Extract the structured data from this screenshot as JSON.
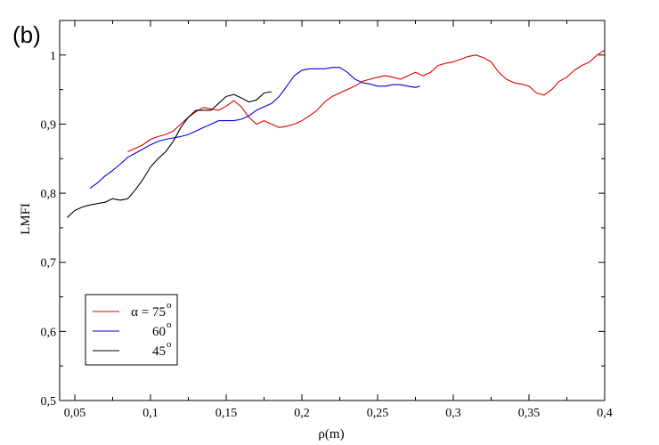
{
  "chart_data": {
    "type": "line",
    "panel_label": "(b)",
    "xlabel": "ρ(m)",
    "ylabel": "LMFI",
    "xlim": [
      0.04,
      0.4
    ],
    "ylim": [
      0.5,
      1.05
    ],
    "x_ticks": [
      {
        "value": 0.05,
        "label": "0,05"
      },
      {
        "value": 0.1,
        "label": "0,1"
      },
      {
        "value": 0.15,
        "label": "0,15"
      },
      {
        "value": 0.2,
        "label": "0,2"
      },
      {
        "value": 0.25,
        "label": "0,25"
      },
      {
        "value": 0.3,
        "label": "0,3"
      },
      {
        "value": 0.35,
        "label": "0,35"
      },
      {
        "value": 0.4,
        "label": "0,4"
      }
    ],
    "y_ticks": [
      {
        "value": 0.5,
        "label": "0,5"
      },
      {
        "value": 0.6,
        "label": "0,6"
      },
      {
        "value": 0.7,
        "label": "0,7"
      },
      {
        "value": 0.8,
        "label": "0,8"
      },
      {
        "value": 0.9,
        "label": "0,9"
      },
      {
        "value": 1.0,
        "label": "1"
      }
    ],
    "grid": false,
    "legend": {
      "placement": "bottom-left"
    },
    "series": [
      {
        "name": "α = 75°",
        "legend_main": "α = 75",
        "legend_sup": "o",
        "color": "#e00000",
        "x": [
          0.085,
          0.09,
          0.095,
          0.1,
          0.105,
          0.11,
          0.115,
          0.12,
          0.125,
          0.13,
          0.135,
          0.14,
          0.145,
          0.15,
          0.155,
          0.16,
          0.165,
          0.17,
          0.175,
          0.18,
          0.185,
          0.19,
          0.195,
          0.2,
          0.205,
          0.21,
          0.215,
          0.22,
          0.225,
          0.23,
          0.235,
          0.24,
          0.245,
          0.25,
          0.255,
          0.26,
          0.265,
          0.27,
          0.275,
          0.28,
          0.285,
          0.29,
          0.295,
          0.3,
          0.305,
          0.31,
          0.315,
          0.32,
          0.325,
          0.33,
          0.335,
          0.34,
          0.345,
          0.35,
          0.355,
          0.36,
          0.365,
          0.37,
          0.375,
          0.38,
          0.385,
          0.39,
          0.395,
          0.4
        ],
        "y": [
          0.86,
          0.865,
          0.87,
          0.878,
          0.882,
          0.885,
          0.89,
          0.9,
          0.91,
          0.918,
          0.924,
          0.922,
          0.92,
          0.926,
          0.934,
          0.925,
          0.91,
          0.9,
          0.905,
          0.9,
          0.895,
          0.897,
          0.9,
          0.905,
          0.912,
          0.92,
          0.932,
          0.94,
          0.945,
          0.95,
          0.955,
          0.962,
          0.965,
          0.968,
          0.97,
          0.968,
          0.965,
          0.97,
          0.975,
          0.97,
          0.975,
          0.985,
          0.988,
          0.99,
          0.994,
          0.998,
          1.0,
          0.996,
          0.99,
          0.975,
          0.965,
          0.96,
          0.958,
          0.955,
          0.945,
          0.942,
          0.95,
          0.962,
          0.968,
          0.978,
          0.985,
          0.99,
          1.0,
          1.007
        ]
      },
      {
        "name": "60°",
        "legend_main": "60",
        "legend_sup": "o",
        "color": "#0000e0",
        "x": [
          0.06,
          0.065,
          0.07,
          0.075,
          0.08,
          0.085,
          0.09,
          0.095,
          0.1,
          0.105,
          0.11,
          0.115,
          0.12,
          0.125,
          0.13,
          0.135,
          0.14,
          0.145,
          0.15,
          0.155,
          0.16,
          0.165,
          0.17,
          0.175,
          0.18,
          0.185,
          0.19,
          0.195,
          0.2,
          0.205,
          0.21,
          0.215,
          0.22,
          0.225,
          0.23,
          0.235,
          0.24,
          0.245,
          0.25,
          0.255,
          0.26,
          0.265,
          0.27,
          0.275,
          0.278
        ],
        "y": [
          0.807,
          0.815,
          0.825,
          0.833,
          0.842,
          0.852,
          0.858,
          0.864,
          0.87,
          0.875,
          0.878,
          0.88,
          0.882,
          0.885,
          0.89,
          0.895,
          0.9,
          0.905,
          0.905,
          0.905,
          0.907,
          0.912,
          0.92,
          0.925,
          0.93,
          0.94,
          0.955,
          0.97,
          0.978,
          0.98,
          0.98,
          0.98,
          0.982,
          0.982,
          0.975,
          0.965,
          0.96,
          0.958,
          0.955,
          0.955,
          0.957,
          0.957,
          0.955,
          0.953,
          0.955
        ]
      },
      {
        "name": "45°",
        "legend_main": "45",
        "legend_sup": "o",
        "color": "#000000",
        "x": [
          0.045,
          0.05,
          0.055,
          0.06,
          0.065,
          0.07,
          0.075,
          0.08,
          0.085,
          0.09,
          0.095,
          0.1,
          0.105,
          0.11,
          0.115,
          0.12,
          0.125,
          0.13,
          0.135,
          0.14,
          0.145,
          0.15,
          0.155,
          0.16,
          0.165,
          0.17,
          0.175,
          0.18
        ],
        "y": [
          0.765,
          0.775,
          0.78,
          0.783,
          0.785,
          0.787,
          0.792,
          0.79,
          0.792,
          0.805,
          0.82,
          0.838,
          0.85,
          0.86,
          0.875,
          0.895,
          0.91,
          0.92,
          0.92,
          0.92,
          0.93,
          0.94,
          0.943,
          0.938,
          0.932,
          0.935,
          0.945,
          0.947
        ]
      }
    ]
  }
}
